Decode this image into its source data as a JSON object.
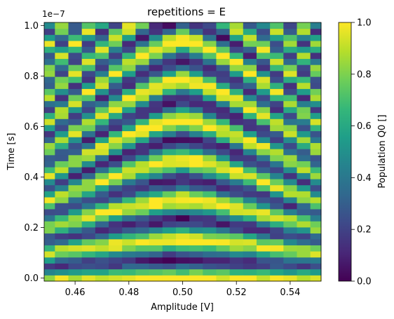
{
  "chart_data": {
    "type": "heatmap",
    "title": "repetitions = E",
    "xlabel": "Amplitude [V]",
    "ylabel": "Time [s]",
    "y_offset_label": "1e−7",
    "colorbar_label": "Population Q0 []",
    "colormap": "viridis",
    "x_range": [
      0.4485,
      0.5515
    ],
    "y_range": [
      -0.012,
      1.012
    ],
    "x_ticks": [
      {
        "value": 0.46,
        "label": "0.46"
      },
      {
        "value": 0.48,
        "label": "0.48"
      },
      {
        "value": 0.5,
        "label": "0.50"
      },
      {
        "value": 0.52,
        "label": "0.52"
      },
      {
        "value": 0.54,
        "label": "0.54"
      }
    ],
    "y_ticks": [
      {
        "value": 0.0,
        "label": "0.0"
      },
      {
        "value": 0.2,
        "label": "0.2"
      },
      {
        "value": 0.4,
        "label": "0.4"
      },
      {
        "value": 0.6,
        "label": "0.6"
      },
      {
        "value": 0.8,
        "label": "0.8"
      },
      {
        "value": 1.0,
        "label": "1.0"
      }
    ],
    "colorbar_ticks": [
      {
        "value": 0.0,
        "label": "0.0"
      },
      {
        "value": 0.2,
        "label": "0.2"
      },
      {
        "value": 0.4,
        "label": "0.4"
      },
      {
        "value": 0.6,
        "label": "0.6"
      },
      {
        "value": 0.8,
        "label": "0.8"
      },
      {
        "value": 1.0,
        "label": "1.0"
      }
    ],
    "vmin": 0.0,
    "vmax": 1.0,
    "grid": false,
    "x": [
      0.45,
      0.455,
      0.46,
      0.465,
      0.47,
      0.475,
      0.48,
      0.485,
      0.49,
      0.495,
      0.5,
      0.505,
      0.51,
      0.515,
      0.52,
      0.525,
      0.53,
      0.535,
      0.54,
      0.545,
      0.55
    ],
    "y": [
      0.0,
      0.024,
      0.048,
      0.071,
      0.095,
      0.119,
      0.143,
      0.167,
      0.19,
      0.214,
      0.238,
      0.262,
      0.286,
      0.31,
      0.333,
      0.357,
      0.381,
      0.405,
      0.429,
      0.452,
      0.476,
      0.5,
      0.524,
      0.548,
      0.571,
      0.595,
      0.619,
      0.643,
      0.667,
      0.69,
      0.714,
      0.738,
      0.762,
      0.786,
      0.81,
      0.833,
      0.857,
      0.881,
      0.905,
      0.929,
      0.952,
      0.976,
      1.0
    ],
    "z_model": "sin^2 Rabi-like interference pattern, approximately symmetric around amplitude 0.50 V",
    "z_notes": "values computed as cell-wise populations in [0, 1]"
  }
}
